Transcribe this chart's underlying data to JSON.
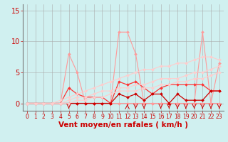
{
  "title": "",
  "xlabel": "Vent moyen/en rafales ( km/h )",
  "ylabel": "",
  "background_color": "#d0f0f0",
  "grid_color": "#aaaaaa",
  "xlim": [
    -0.5,
    23.5
  ],
  "ylim": [
    -1.2,
    16
  ],
  "yticks": [
    0,
    5,
    10,
    15
  ],
  "xticks": [
    0,
    1,
    2,
    3,
    4,
    5,
    6,
    7,
    8,
    9,
    10,
    11,
    12,
    13,
    14,
    15,
    16,
    17,
    18,
    19,
    20,
    21,
    22,
    23
  ],
  "series": [
    {
      "x": [
        0,
        1,
        2,
        3,
        4,
        5,
        6,
        7,
        8,
        9,
        10,
        11,
        12,
        13,
        14,
        15,
        16,
        17,
        18,
        19,
        20,
        21,
        22,
        23
      ],
      "y": [
        0,
        0,
        0,
        0,
        0,
        8,
        5,
        0,
        0,
        0,
        0,
        11.5,
        11.5,
        8,
        0,
        0,
        0,
        0,
        0,
        0,
        0,
        11.5,
        0,
        0
      ],
      "color": "#ff9999",
      "lw": 0.8,
      "marker": "D",
      "ms": 2.0
    },
    {
      "x": [
        0,
        1,
        2,
        3,
        4,
        5,
        6,
        7,
        8,
        9,
        10,
        11,
        12,
        13,
        14,
        15,
        16,
        17,
        18,
        19,
        20,
        21,
        22,
        23
      ],
      "y": [
        0,
        0,
        0,
        0,
        0,
        0,
        0,
        0,
        0,
        0,
        0,
        0,
        0,
        0,
        0,
        0,
        0,
        0,
        0,
        0,
        0,
        0,
        0,
        6.5
      ],
      "color": "#ff9999",
      "lw": 0.8,
      "marker": "D",
      "ms": 2.0
    },
    {
      "x": [
        0,
        1,
        2,
        3,
        4,
        5,
        6,
        7,
        8,
        9,
        10,
        11,
        12,
        13,
        14,
        15,
        16,
        17,
        18,
        19,
        20,
        21,
        22,
        23
      ],
      "y": [
        0,
        0,
        0,
        0,
        0,
        2.5,
        1.5,
        1,
        1,
        1,
        0,
        3.5,
        3,
        3.5,
        2.5,
        1.5,
        2.5,
        3,
        3,
        3,
        3,
        3,
        2,
        2
      ],
      "color": "#ff3333",
      "lw": 0.9,
      "marker": "D",
      "ms": 2.0
    },
    {
      "x": [
        0,
        1,
        2,
        3,
        4,
        5,
        6,
        7,
        8,
        9,
        10,
        11,
        12,
        13,
        14,
        15,
        16,
        17,
        18,
        19,
        20,
        21,
        22,
        23
      ],
      "y": [
        0,
        0,
        0,
        0,
        0,
        0,
        0,
        0,
        0,
        0,
        0,
        1.5,
        1,
        1.5,
        0.5,
        1.5,
        1.5,
        0,
        1.5,
        0.5,
        0.5,
        0.5,
        2,
        2
      ],
      "color": "#cc0000",
      "lw": 0.9,
      "marker": "D",
      "ms": 2.0
    },
    {
      "x": [
        0,
        1,
        2,
        3,
        4,
        5,
        6,
        7,
        8,
        9,
        10,
        11,
        12,
        13,
        14,
        15,
        16,
        17,
        18,
        19,
        20,
        21,
        22,
        23
      ],
      "y": [
        0,
        0,
        0,
        0,
        0.5,
        1,
        1.5,
        2,
        2.5,
        3,
        3.5,
        4,
        4.5,
        5,
        5.5,
        5.5,
        6,
        6,
        6.5,
        6.5,
        7,
        7.5,
        7.5,
        7
      ],
      "color": "#ffcccc",
      "lw": 0.8,
      "marker": "D",
      "ms": 2.0
    },
    {
      "x": [
        0,
        1,
        2,
        3,
        4,
        5,
        6,
        7,
        8,
        9,
        10,
        11,
        12,
        13,
        14,
        15,
        16,
        17,
        18,
        19,
        20,
        21,
        22,
        23
      ],
      "y": [
        0,
        0,
        0,
        0,
        0,
        0.5,
        1,
        1,
        1.5,
        2,
        2,
        2.5,
        2.5,
        3,
        3,
        3.5,
        4,
        4,
        4,
        4.5,
        5,
        5,
        5.5,
        6
      ],
      "color": "#ffcccc",
      "lw": 0.8,
      "marker": "D",
      "ms": 2.0
    },
    {
      "x": [
        0,
        1,
        2,
        3,
        4,
        5,
        6,
        7,
        8,
        9,
        10,
        11,
        12,
        13,
        14,
        15,
        16,
        17,
        18,
        19,
        20,
        21,
        22,
        23
      ],
      "y": [
        0,
        0,
        0,
        0,
        0,
        0,
        0.5,
        0.5,
        1,
        1,
        1.5,
        2,
        2,
        2,
        2.5,
        2.5,
        3,
        3,
        3.5,
        3.5,
        4,
        4,
        4.5,
        5
      ],
      "color": "#ffcccc",
      "lw": 0.8,
      "marker": "D",
      "ms": 2.0
    }
  ],
  "arrows_down": [
    5,
    13,
    14,
    16,
    17,
    18,
    19,
    20,
    21,
    22,
    23
  ],
  "arrows_up": [
    12
  ],
  "xlabel_color": "#cc0000",
  "tick_color": "#cc0000",
  "xlabel_fontsize": 7.5,
  "tick_fontsize_x": 5.5,
  "tick_fontsize_y": 7
}
